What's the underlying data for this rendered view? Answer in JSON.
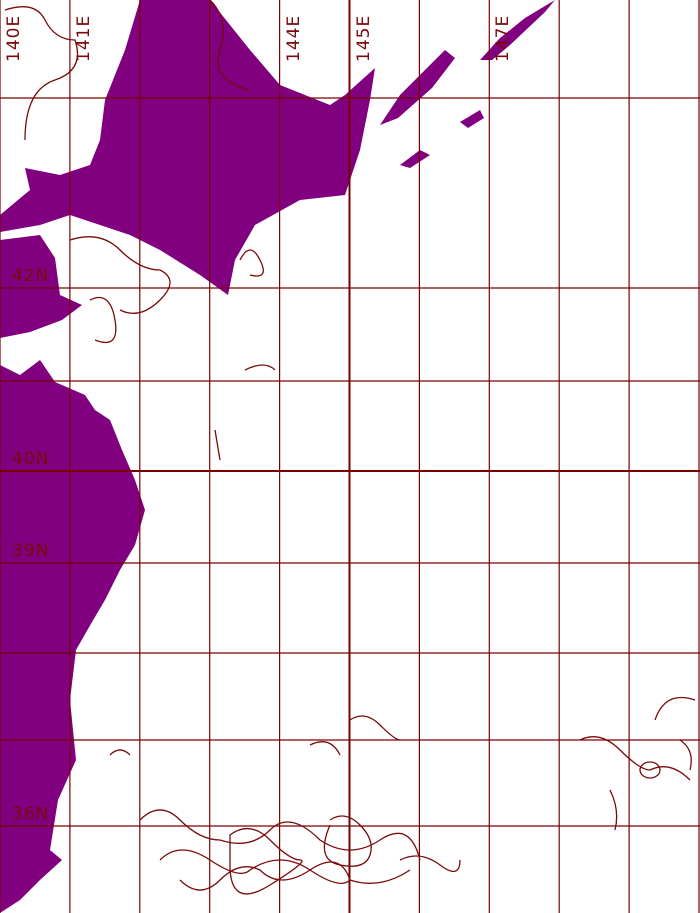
{
  "map": {
    "colors": {
      "land": "#800080",
      "grid": "#7a0000",
      "contour": "#7a0a0a",
      "ocean": "#ffffff"
    },
    "lon_labels": [
      {
        "text": "140E",
        "lon": 140
      },
      {
        "text": "141E",
        "lon": 141
      },
      {
        "text": "144E",
        "lon": 144
      },
      {
        "text": "145E",
        "lon": 145
      },
      {
        "text": "147E",
        "lon": 147
      }
    ],
    "lat_labels": [
      {
        "text": "42N",
        "lat": 42
      },
      {
        "text": "40N",
        "lat": 40
      },
      {
        "text": "39N",
        "lat": 39
      },
      {
        "text": "36N",
        "lat": 36
      }
    ],
    "lon_range": [
      140,
      150
    ],
    "lat_range": [
      35.1,
      43.1
    ],
    "gridlines_lon": [
      140,
      141,
      142,
      143,
      144,
      145,
      146,
      147,
      148,
      149,
      150
    ],
    "gridlines_lat": [
      43,
      42,
      41,
      40,
      39,
      38,
      37,
      36
    ]
  }
}
